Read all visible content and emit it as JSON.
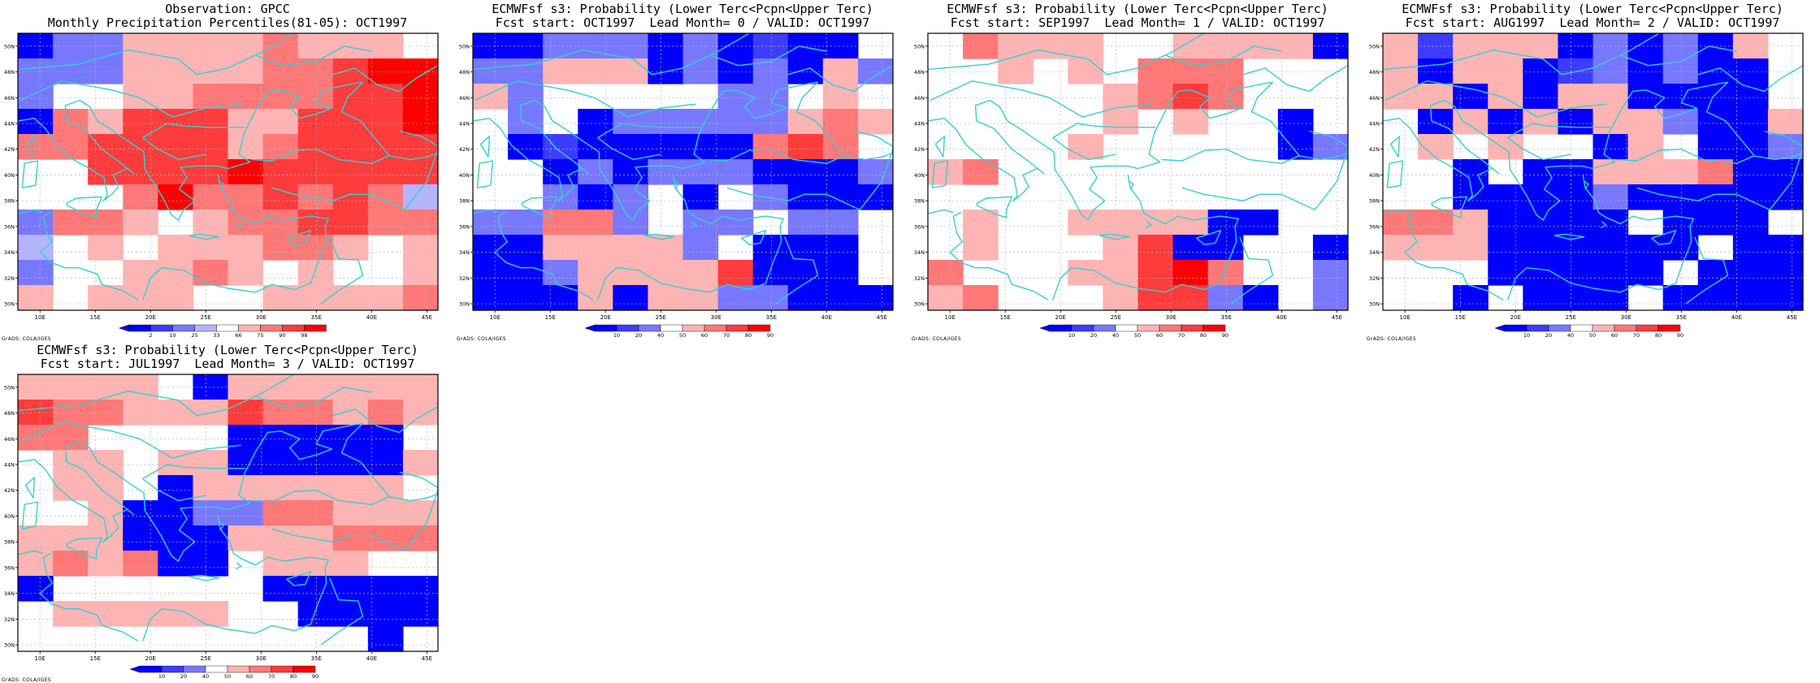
{
  "colors": {
    "pct_levels": [
      "#0000ff",
      "#3c3cff",
      "#7878ff",
      "#b4b4ff",
      "#ffffff",
      "#ffb4b4",
      "#ff7878",
      "#ff3c3c",
      "#ff0000"
    ],
    "prob_levels": [
      "#0000ff",
      "#3c3cff",
      "#7878ff",
      "#ffffff",
      "#ffb4b4",
      "#ff7878",
      "#ff3c3c",
      "#ff0000"
    ],
    "coast": "#35d0d0",
    "grid": "#bbbbbb"
  },
  "axes": {
    "lon_labels": [
      "10E",
      "15E",
      "20E",
      "25E",
      "30E",
      "35E",
      "40E",
      "45E"
    ],
    "lat_labels": [
      "30N",
      "32N",
      "34N",
      "36N",
      "38N",
      "40N",
      "42N",
      "44N",
      "46N",
      "48N",
      "50N"
    ],
    "lon_range": [
      8,
      46
    ],
    "lat_range": [
      29.5,
      51
    ]
  },
  "credit": "GrADS: COLA/IGES",
  "panels": [
    {
      "title1": "Observation: GPCC",
      "title2": "Monthly Precipitation Percentiles(81-05): OCT1997",
      "legend_labels": [
        "2",
        "10",
        "25",
        "33",
        "66",
        "75",
        "90",
        "98"
      ],
      "grid": [
        "022555565554",
        "222555566788",
        "244556666778",
        "065777557778",
        "667777567777",
        "447777877777",
        "444686676763",
        "266545667766",
        "345455566545",
        "244556545445",
        "545554455556"
      ]
    },
    {
      "title1": "ECMWFsf s3: Probability (Lower Terc<Pcpn<Upper Terc)",
      "title2": "Fcst start: OCT1997  Lead Month= 0 / VALID: OCT1997",
      "legend_labels": [
        "10",
        "20",
        "40",
        "50",
        "60",
        "70",
        "80",
        "90"
      ],
      "grid": [
        "002220201003",
        "224440202042",
        "423333322343",
        "323022222454",
        "301000005653",
        "330202220002",
        "332023032000",
        "225523223223",
        "004444230003",
        "002444460003",
        "000404422000"
      ]
    },
    {
      "title1": "ECMWFsf s3: Probability (Lower Terc<Pcpn<Upper Terc)",
      "title2": "Fcst start: SEP1997  Lead Month= 1 / VALID: OCT1997",
      "legend_labels": [
        "10",
        "20",
        "40",
        "50",
        "60",
        "70",
        "80",
        "90"
      ],
      "grid": [
        "354443344440",
        "334343555333",
        "333334565333",
        "333334343303",
        "333343333302",
        "453333333333",
        "333333333333",
        "343344440033",
        "343334600330",
        "533344675332",
        "453334662032"
      ]
    },
    {
      "title1": "ECMWFsf s3: Probability (Lower Terc<Pcpn<Upper Terc)",
      "title2": "Fcst start: AUG1997  Lead Month= 2 / VALID: OCT1997",
      "legend_labels": [
        "10",
        "20",
        "40",
        "50",
        "60",
        "70",
        "80",
        "90"
      ],
      "grid": [
        "414440202043",
        "404401202003",
        "440404400003",
        "304040442004",
        "343433043002",
        "330300444500",
        "330000200000",
        "554000030003",
        "444000000300",
        "333000003000",
        "330300030000"
      ]
    },
    {
      "title1": "ECMWFsf s3: Probability (Lower Terc<Pcpn<Upper Terc)",
      "title2": "Fcst start: JUL1997  Lead Month= 3 / VALID: OCT1997",
      "legend_labels": [
        "10",
        "20",
        "40",
        "50",
        "60",
        "70",
        "80",
        "90"
      ],
      "grid": [
        "444430444444",
        "655444655454",
        "553333000003",
        "344344000004",
        "344304444443",
        "334002255444",
        "444000444555",
        "454500344433",
        "033333300000",
        "344444330000",
        "333333333303"
      ]
    }
  ]
}
